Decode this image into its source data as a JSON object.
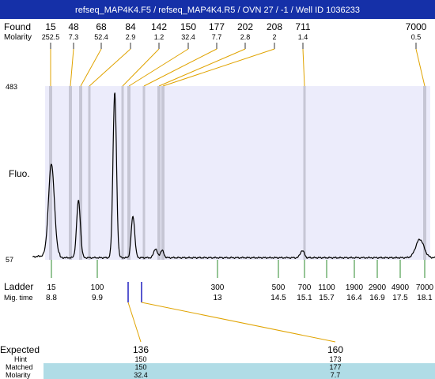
{
  "header": {
    "title": "refseq_MAP4K4.F5 / refseq_MAP4K4.R5 / OVN 27 / -1 / Well ID 1036233"
  },
  "labels": {
    "found": "Found",
    "molarity": "Molarity",
    "fluo": "Fluo.",
    "ladder": "Ladder",
    "mig_time": "Mig. time",
    "expected": "Expected",
    "hint": "Hint",
    "matched": "Matched",
    "molarity_bottom": "Molarity"
  },
  "colors": {
    "header_bg": "#1530a8",
    "plot_bg": "#ececfb",
    "band": "#c6c6d4",
    "found_connector": "#e0a300",
    "ladder_tick": "#2e8b2e",
    "expected_marker": "#2020c0",
    "table_highlight": "#b0dce6",
    "trace": "#000000"
  },
  "chart_data": {
    "type": "line",
    "title": "refseq_MAP4K4.F5 / refseq_MAP4K4.R5 / OVN 27 / -1 / Well ID 1036233",
    "xlabel": "",
    "ylabel": "Fluo.",
    "ylim": [
      57,
      483
    ],
    "ytick_labels": [
      "483",
      "57"
    ],
    "found_peaks": [
      {
        "size": "15",
        "molarity": "252.5"
      },
      {
        "size": "48",
        "molarity": "7.3"
      },
      {
        "size": "68",
        "molarity": "52.4"
      },
      {
        "size": "84",
        "molarity": "2.9"
      },
      {
        "size": "142",
        "molarity": "1.2"
      },
      {
        "size": "150",
        "molarity": "32.4"
      },
      {
        "size": "177",
        "molarity": "7.7"
      },
      {
        "size": "202",
        "molarity": "2.8"
      },
      {
        "size": "208",
        "molarity": "2"
      },
      {
        "size": "711",
        "molarity": "1.4"
      },
      {
        "size": "7000",
        "molarity": "0.5"
      }
    ],
    "ladder": [
      {
        "size": "15",
        "time": "8.8"
      },
      {
        "size": "100",
        "time": "9.9"
      },
      {
        "size": "300",
        "time": "13"
      },
      {
        "size": "500",
        "time": "14.5"
      },
      {
        "size": "700",
        "time": "15.1"
      },
      {
        "size": "1100",
        "time": "15.7"
      },
      {
        "size": "1900",
        "time": "16.4"
      },
      {
        "size": "2900",
        "time": "16.9"
      },
      {
        "size": "4900",
        "time": "17.5"
      },
      {
        "size": "7000",
        "time": "18.1"
      }
    ],
    "expected": [
      {
        "expected": "136",
        "hint": "150",
        "matched": "150",
        "molarity": "32.4"
      },
      {
        "expected": "160",
        "hint": "173",
        "matched": "177",
        "molarity": "7.7"
      }
    ],
    "trace": {
      "baseline": 62,
      "peaks": [
        {
          "time": 8.8,
          "height": 225
        },
        {
          "time": 9.45,
          "height": 140
        },
        {
          "time": 10.35,
          "height": 405
        },
        {
          "time": 10.82,
          "height": 102
        },
        {
          "time": 11.4,
          "height": 22
        },
        {
          "time": 11.57,
          "height": 18
        },
        {
          "time": 15.05,
          "height": 18
        },
        {
          "time": 17.98,
          "height": 45
        }
      ]
    }
  }
}
